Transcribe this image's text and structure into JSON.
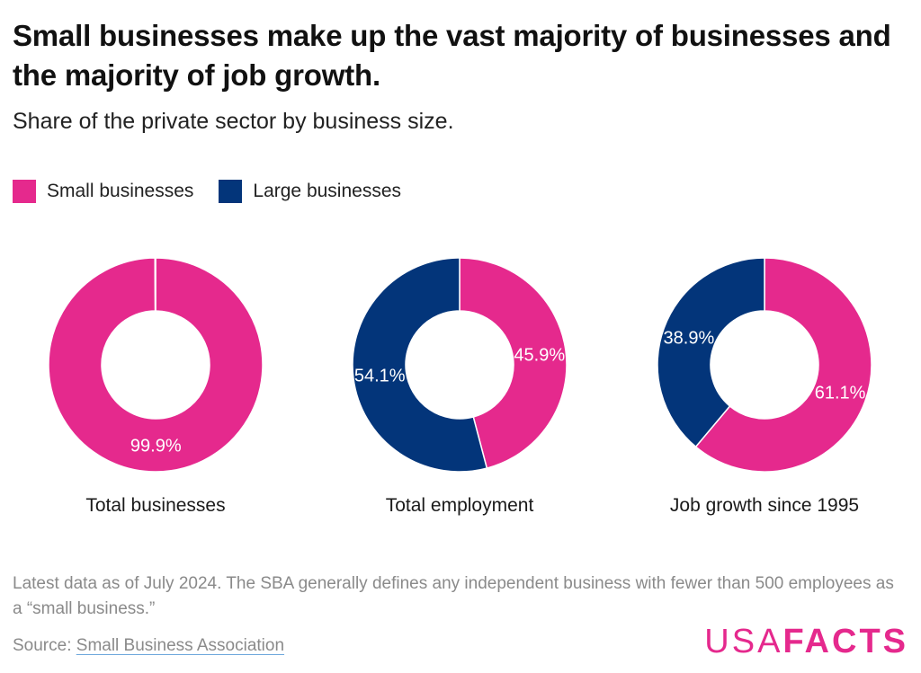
{
  "title": "Small businesses make up the vast majority of businesses and the majority of job growth.",
  "subtitle": "Share of the private sector by business size.",
  "legend": [
    {
      "label": "Small businesses",
      "color": "#e5298d"
    },
    {
      "label": "Large businesses",
      "color": "#03357a"
    }
  ],
  "footnote": "Latest data as of July 2024. The SBA generally defines any independent business with fewer than 500 employees as a “small business.”",
  "source": {
    "prefix": "Source: ",
    "link_text": "Small Business Association"
  },
  "logo": {
    "usa": "USA",
    "facts": "FACTS"
  },
  "chart_data": [
    {
      "type": "pie",
      "variant": "donut",
      "title": "Total businesses",
      "series": [
        {
          "name": "Small businesses",
          "value": 99.9,
          "label": "99.9%",
          "color": "#e5298d"
        },
        {
          "name": "Large businesses",
          "value": 0.1,
          "label": "",
          "color": "#03357a"
        }
      ]
    },
    {
      "type": "pie",
      "variant": "donut",
      "title": "Total employment",
      "series": [
        {
          "name": "Small businesses",
          "value": 45.9,
          "label": "45.9%",
          "color": "#e5298d"
        },
        {
          "name": "Large businesses",
          "value": 54.1,
          "label": "54.1%",
          "color": "#03357a"
        }
      ]
    },
    {
      "type": "pie",
      "variant": "donut",
      "title": "Job growth since 1995",
      "series": [
        {
          "name": "Small businesses",
          "value": 61.1,
          "label": "61.1%",
          "color": "#e5298d"
        },
        {
          "name": "Large businesses",
          "value": 38.9,
          "label": "38.9%",
          "color": "#03357a"
        }
      ]
    }
  ]
}
